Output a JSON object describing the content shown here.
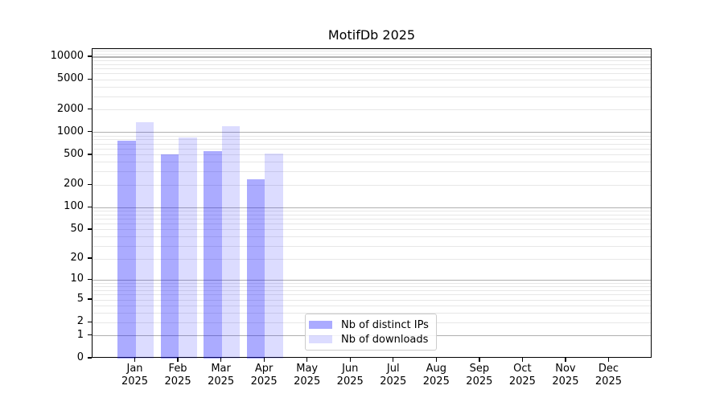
{
  "chart_data": {
    "type": "bar",
    "title": "MotifDb 2025",
    "categories": [
      "Jan",
      "Feb",
      "Mar",
      "Apr",
      "May",
      "Jun",
      "Jul",
      "Aug",
      "Sep",
      "Oct",
      "Nov",
      "Dec"
    ],
    "year_label": "2025",
    "series": [
      {
        "name": "Nb of distinct IPs",
        "color": "rgba(10,10,255,0.34)",
        "values": [
          780,
          510,
          570,
          240,
          null,
          null,
          null,
          null,
          null,
          null,
          null,
          null
        ]
      },
      {
        "name": "Nb of downloads",
        "color": "rgba(10,10,255,0.14)",
        "values": [
          1370,
          860,
          1220,
          520,
          null,
          null,
          null,
          null,
          null,
          null,
          null,
          null
        ]
      }
    ],
    "y_ticks": [
      0,
      1,
      2,
      5,
      10,
      20,
      50,
      100,
      200,
      500,
      1000,
      2000,
      5000,
      10000
    ],
    "y_scale": "log1p",
    "ylim": [
      0,
      12800
    ],
    "xlabel": "",
    "ylabel": "",
    "grid": "on",
    "legend_position": "lower center",
    "grid_major_color": "#b0b0b0",
    "grid_minor_color": "#e7e7e7"
  }
}
